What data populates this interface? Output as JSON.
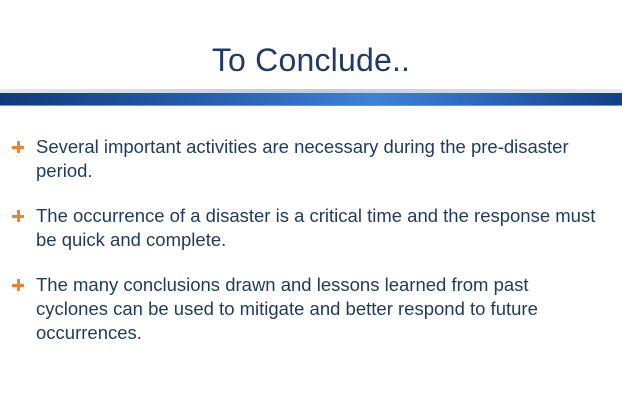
{
  "slide": {
    "title": "To Conclude..",
    "bullets": [
      {
        "text": "Several important activities are necessary during the pre-disaster period."
      },
      {
        "text": "The occurrence of a disaster is a critical time and the response must be quick and complete."
      },
      {
        "text": "The many conclusions drawn and lessons learned from past cyclones can be used to mitigate and better respond to future occurrences."
      }
    ]
  },
  "colors": {
    "title": "#1f3b63",
    "body_text": "#1e3a5f",
    "bullet_icon": "#e9862d",
    "band_primary": "#2a63b4"
  }
}
